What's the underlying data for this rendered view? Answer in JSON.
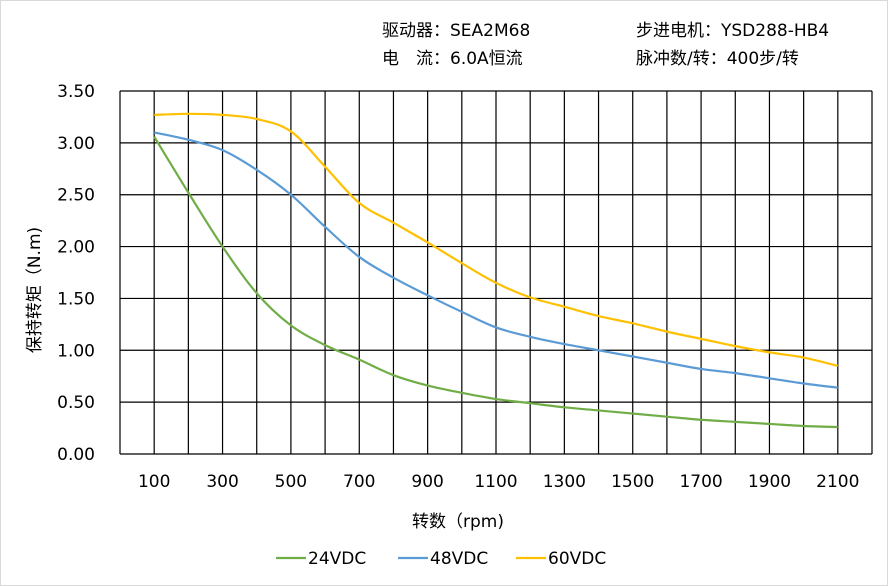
{
  "header": {
    "driver": "驱动器：SEA2M68",
    "motor": "步进电机：YSD288-HB4",
    "current": "电　流：6.0A恒流",
    "pulses": "脉冲数/转：400步/转"
  },
  "chart_data": {
    "type": "line",
    "title": "",
    "xlabel": "转数（rpm)",
    "ylabel": "保持转矩（N.m)",
    "xlim": [
      0,
      2200
    ],
    "ylim": [
      0,
      3.5
    ],
    "xticks": [
      "100",
      "300",
      "500",
      "700",
      "900",
      "1100",
      "1300",
      "1500",
      "1700",
      "1900",
      "2100"
    ],
    "yticks": [
      "0.00",
      "0.50",
      "1.00",
      "1.50",
      "2.00",
      "2.50",
      "3.00",
      "3.50"
    ],
    "grid": true,
    "legend": "bottom",
    "x": [
      100,
      200,
      300,
      400,
      500,
      600,
      700,
      800,
      900,
      1000,
      1100,
      1200,
      1300,
      1400,
      1500,
      1600,
      1700,
      1800,
      1900,
      2000,
      2100
    ],
    "series": [
      {
        "name": "24VDC",
        "color": "#70ad47",
        "values": [
          3.06,
          2.52,
          2.0,
          1.55,
          1.24,
          1.05,
          0.91,
          0.76,
          0.66,
          0.59,
          0.53,
          0.49,
          0.45,
          0.42,
          0.39,
          0.36,
          0.33,
          0.31,
          0.29,
          0.27,
          0.26
        ]
      },
      {
        "name": "48VDC",
        "color": "#5b9bd5",
        "values": [
          3.1,
          3.03,
          2.93,
          2.74,
          2.5,
          2.19,
          1.9,
          1.7,
          1.53,
          1.37,
          1.22,
          1.13,
          1.06,
          1.0,
          0.94,
          0.88,
          0.82,
          0.78,
          0.73,
          0.68,
          0.64
        ]
      },
      {
        "name": "60VDC",
        "color": "#ffc000",
        "values": [
          3.27,
          3.28,
          3.27,
          3.23,
          3.11,
          2.77,
          2.42,
          2.23,
          2.04,
          1.84,
          1.65,
          1.51,
          1.42,
          1.33,
          1.26,
          1.18,
          1.11,
          1.04,
          0.98,
          0.93,
          0.85
        ]
      }
    ]
  }
}
